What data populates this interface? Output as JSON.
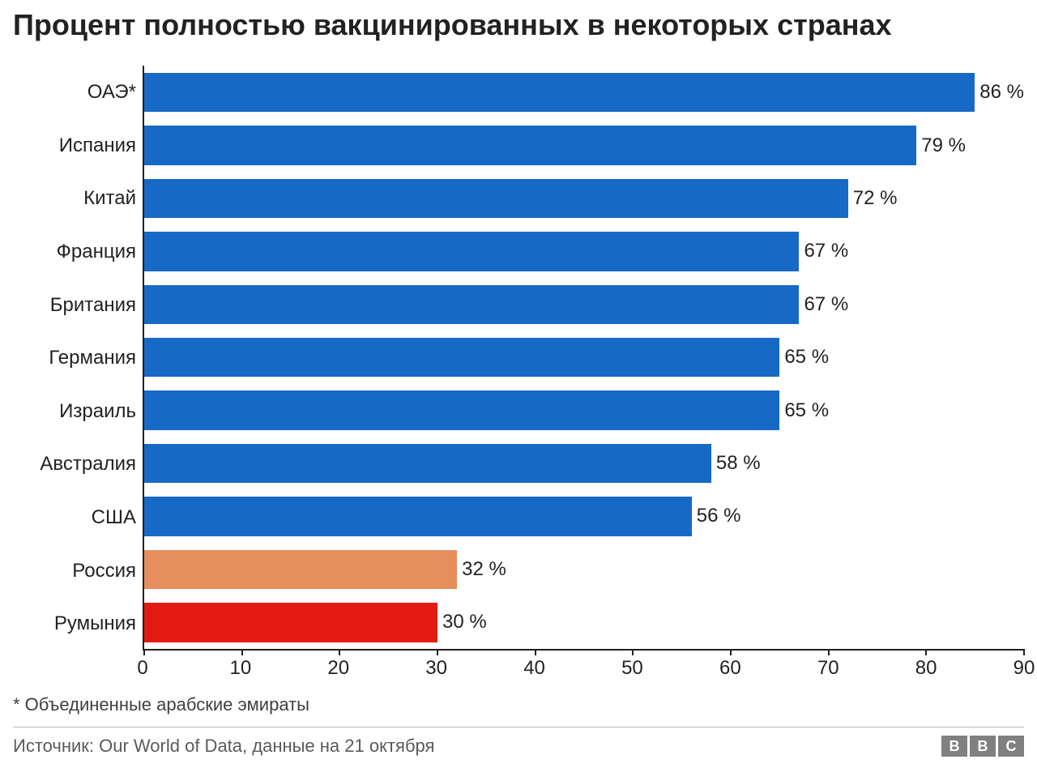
{
  "title": "Процент полностью вакцинированных в некоторых странах",
  "chart": {
    "type": "bar-horizontal",
    "xlim": [
      0,
      90
    ],
    "xtick_step": 10,
    "xticks": [
      0,
      10,
      20,
      30,
      40,
      50,
      60,
      70,
      80,
      90
    ],
    "value_suffix": " %",
    "axis_color": "#222222",
    "background_color": "#ffffff",
    "label_fontsize": 24,
    "bar_fill_ratio": 0.74,
    "colors": {
      "default": "#1769c6",
      "highlight1": "#e68f5c",
      "highlight2": "#e31b12"
    },
    "items": [
      {
        "label": "ОАЭ*",
        "value": 86,
        "color": "#1769c6"
      },
      {
        "label": "Испания",
        "value": 79,
        "color": "#1769c6"
      },
      {
        "label": "Китай",
        "value": 72,
        "color": "#1769c6"
      },
      {
        "label": "Франция",
        "value": 67,
        "color": "#1769c6"
      },
      {
        "label": "Британия",
        "value": 67,
        "color": "#1769c6"
      },
      {
        "label": "Германия",
        "value": 65,
        "color": "#1769c6"
      },
      {
        "label": "Израиль",
        "value": 65,
        "color": "#1769c6"
      },
      {
        "label": "Австралия",
        "value": 58,
        "color": "#1769c6"
      },
      {
        "label": "США",
        "value": 56,
        "color": "#1769c6"
      },
      {
        "label": "Россия",
        "value": 32,
        "color": "#e68f5c"
      },
      {
        "label": "Румыния",
        "value": 30,
        "color": "#e31b12"
      }
    ]
  },
  "note": "* Объединенные арабские эмираты",
  "footer": {
    "source": "Источник: Our World of Data, данные на 21 октября",
    "logo_letters": [
      "B",
      "B",
      "C"
    ],
    "logo_box_color": "#808080",
    "logo_text_color": "#ffffff"
  }
}
